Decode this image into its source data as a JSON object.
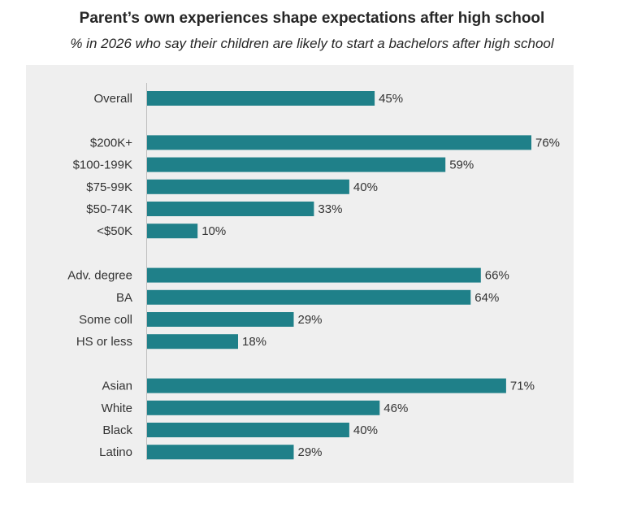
{
  "chart_data": {
    "type": "bar",
    "orientation": "horizontal",
    "title": "Parent’s own experiences shape expectations after high school",
    "subtitle": "% in 2026 who say their children are likely to start a bachelors after high school",
    "value_suffix": "%",
    "bar_color": "#1f8089",
    "groups": [
      {
        "categories": [
          "Overall"
        ],
        "values": [
          45
        ]
      },
      {
        "categories": [
          "$200K+",
          "$100-199K",
          "$75-99K",
          "$50-74K",
          "<$50K"
        ],
        "values": [
          76,
          59,
          40,
          33,
          10
        ]
      },
      {
        "categories": [
          "Adv. degree",
          "BA",
          "Some coll",
          "HS or less"
        ],
        "values": [
          66,
          64,
          29,
          18
        ]
      },
      {
        "categories": [
          "Asian",
          "White",
          "Black",
          "Latino"
        ],
        "values": [
          71,
          46,
          40,
          29
        ]
      }
    ],
    "xlim": [
      0,
      76
    ],
    "grid": false,
    "legend": "none"
  }
}
